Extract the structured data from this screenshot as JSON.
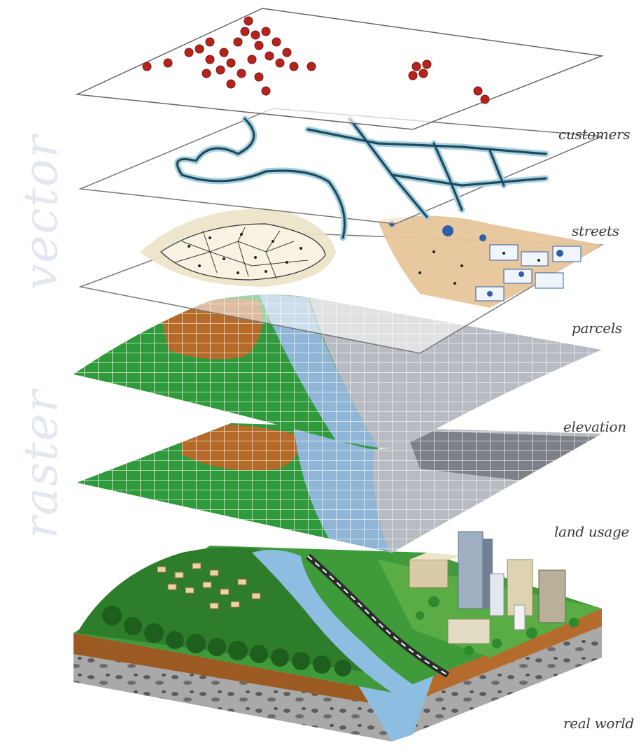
{
  "side_labels": {
    "vector": "vector",
    "raster": "raster"
  },
  "layers": [
    {
      "id": "customers",
      "label": "customers"
    },
    {
      "id": "streets",
      "label": "streets"
    },
    {
      "id": "parcels",
      "label": "parcels"
    },
    {
      "id": "elevation",
      "label": "elevation"
    },
    {
      "id": "land_usage",
      "label": "land usage"
    },
    {
      "id": "real_world",
      "label": "real world"
    }
  ],
  "colors": {
    "customer_dot": "#b5231c",
    "street_line": "#1d4a5c",
    "street_glow": "#9fc9d9",
    "parcel_sand": "#e9dfc4",
    "parcel_blue": "#2f5fa8",
    "elevation_green": "#2f9a3c",
    "elevation_brown": "#b66a2a",
    "elevation_gray": "#b8bcc2",
    "water_blue": "#7fb0d8",
    "soil_brown": "#9b5a22",
    "rock_gray": "#9a9a9a"
  }
}
